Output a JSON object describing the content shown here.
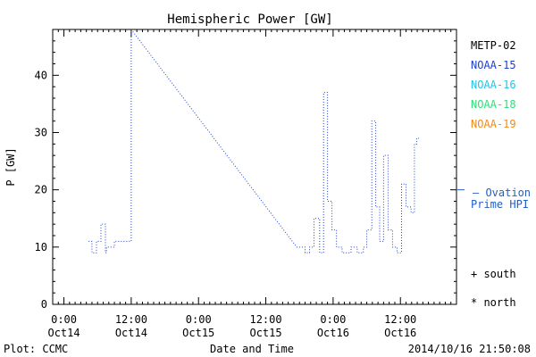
{
  "chart_data": {
    "type": "line",
    "title": "Hemispheric Power [GW]",
    "xlabel": "Date and Time",
    "ylabel": "P [GW]",
    "ylim": [
      0,
      48
    ],
    "yticks": [
      0,
      10,
      20,
      30,
      40
    ],
    "x_tick_hours": [
      0,
      12,
      24,
      36,
      48,
      60
    ],
    "x_tick_labels": [
      {
        "time": "0:00",
        "date": "Oct14"
      },
      {
        "time": "12:00",
        "date": "Oct14"
      },
      {
        "time": "0:00",
        "date": "Oct15"
      },
      {
        "time": "12:00",
        "date": "Oct15"
      },
      {
        "time": "0:00",
        "date": "Oct16"
      },
      {
        "time": "12:00",
        "date": "Oct16"
      }
    ],
    "xlim_hours": [
      -2,
      70
    ],
    "legend": {
      "placement": "right",
      "entries": [
        {
          "label": "METP-02",
          "color": "#000000"
        },
        {
          "label": "NOAA-15",
          "color": "#1f3fd0"
        },
        {
          "label": "NOAA-16",
          "color": "#1ec8e6"
        },
        {
          "label": "NOAA-18",
          "color": "#2ee07a"
        },
        {
          "label": "NOAA-19",
          "color": "#f08a1a"
        }
      ]
    },
    "hpi": {
      "label_line1": "— Ovation",
      "label_line2": "Prime HPI",
      "value": 20,
      "color": "#1f5fc8"
    },
    "markers": {
      "south": "+ south",
      "north": "* north"
    },
    "series": [
      {
        "name": "Ovation Prime HPI",
        "color": "#1f3fd0",
        "style": "dotted-step",
        "points": [
          [
            4.4,
            11
          ],
          [
            5.0,
            9
          ],
          [
            5.8,
            11
          ],
          [
            6.6,
            14
          ],
          [
            7.4,
            9
          ],
          [
            7.6,
            10
          ],
          [
            9.0,
            11
          ],
          [
            10.2,
            11
          ],
          [
            12.0,
            48
          ],
          [
            41.5,
            10
          ],
          [
            43.0,
            9
          ],
          [
            43.8,
            10
          ],
          [
            44.6,
            15
          ],
          [
            45.6,
            9
          ],
          [
            46.3,
            37
          ],
          [
            47.0,
            18
          ],
          [
            47.8,
            13
          ],
          [
            48.6,
            10
          ],
          [
            49.6,
            9
          ],
          [
            51.2,
            10
          ],
          [
            52.3,
            9
          ],
          [
            53.4,
            10
          ],
          [
            54.0,
            13
          ],
          [
            54.9,
            32
          ],
          [
            55.6,
            17
          ],
          [
            56.3,
            11
          ],
          [
            57.0,
            26
          ],
          [
            57.8,
            13
          ],
          [
            58.6,
            10
          ],
          [
            59.4,
            9
          ],
          [
            60.2,
            21
          ],
          [
            61.0,
            17
          ],
          [
            61.9,
            16
          ],
          [
            62.5,
            28
          ],
          [
            62.9,
            29
          ]
        ]
      }
    ]
  },
  "footer": {
    "source": "Plot: CCMC",
    "timestamp": "2014/10/16 21:50:08"
  }
}
